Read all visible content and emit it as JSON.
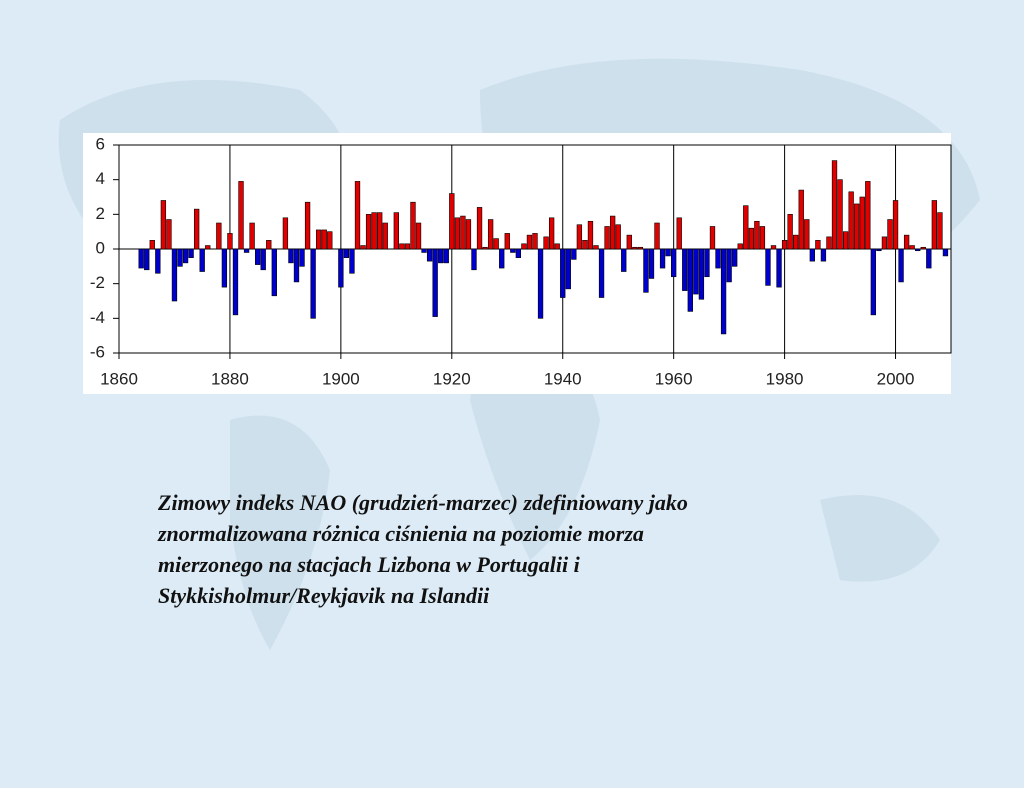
{
  "chart_data": {
    "type": "bar",
    "x": [
      1864,
      1865,
      1866,
      1867,
      1868,
      1869,
      1870,
      1871,
      1872,
      1873,
      1874,
      1875,
      1876,
      1877,
      1878,
      1879,
      1880,
      1881,
      1882,
      1883,
      1884,
      1885,
      1886,
      1887,
      1888,
      1889,
      1890,
      1891,
      1892,
      1893,
      1894,
      1895,
      1896,
      1897,
      1898,
      1899,
      1900,
      1901,
      1902,
      1903,
      1904,
      1905,
      1906,
      1907,
      1908,
      1909,
      1910,
      1911,
      1912,
      1913,
      1914,
      1915,
      1916,
      1917,
      1918,
      1919,
      1920,
      1921,
      1922,
      1923,
      1924,
      1925,
      1926,
      1927,
      1928,
      1929,
      1930,
      1931,
      1932,
      1933,
      1934,
      1935,
      1936,
      1937,
      1938,
      1939,
      1940,
      1941,
      1942,
      1943,
      1944,
      1945,
      1946,
      1947,
      1948,
      1949,
      1950,
      1951,
      1952,
      1953,
      1954,
      1955,
      1956,
      1957,
      1958,
      1959,
      1960,
      1961,
      1962,
      1963,
      1964,
      1965,
      1966,
      1967,
      1968,
      1969,
      1970,
      1971,
      1972,
      1973,
      1974,
      1975,
      1976,
      1977,
      1978,
      1979,
      1980,
      1981,
      1982,
      1983,
      1984,
      1985,
      1986,
      1987,
      1988,
      1989,
      1990,
      1991,
      1992,
      1993,
      1994,
      1995,
      1996,
      1997,
      1998,
      1999,
      2000,
      2001,
      2002,
      2003,
      2004,
      2005,
      2006,
      2007,
      2008,
      2009
    ],
    "values": [
      -1.1,
      -1.2,
      0.5,
      -1.4,
      2.8,
      1.7,
      -3.0,
      -1.0,
      -0.8,
      -0.5,
      2.3,
      -1.3,
      0.2,
      0.0,
      1.5,
      -2.2,
      0.9,
      -3.8,
      3.9,
      -0.2,
      1.5,
      -0.9,
      -1.2,
      0.5,
      -2.7,
      0.0,
      1.8,
      -0.8,
      -1.9,
      -1.0,
      2.7,
      -4.0,
      1.1,
      1.1,
      1.0,
      0.0,
      -2.2,
      -0.5,
      -1.4,
      3.9,
      0.2,
      2.0,
      2.1,
      2.1,
      1.5,
      0.0,
      2.1,
      0.3,
      0.3,
      2.7,
      1.5,
      -0.2,
      -0.7,
      -3.9,
      -0.8,
      -0.8,
      3.2,
      1.8,
      1.9,
      1.7,
      -1.2,
      2.4,
      0.1,
      1.7,
      0.6,
      -1.1,
      0.9,
      -0.2,
      -0.5,
      0.3,
      0.8,
      0.9,
      -4.0,
      0.7,
      1.8,
      0.3,
      -2.8,
      -2.3,
      -0.6,
      1.4,
      0.5,
      1.6,
      0.2,
      -2.8,
      1.3,
      1.9,
      1.4,
      -1.3,
      0.8,
      0.1,
      0.1,
      -2.5,
      -1.7,
      1.5,
      -1.1,
      -0.4,
      -1.6,
      1.8,
      -2.4,
      -3.6,
      -2.6,
      -2.9,
      -1.6,
      1.3,
      -1.1,
      -4.9,
      -1.9,
      -1.0,
      0.3,
      2.5,
      1.2,
      1.6,
      1.3,
      -2.1,
      0.2,
      -2.2,
      0.5,
      2.0,
      0.8,
      3.4,
      1.7,
      -0.7,
      0.5,
      -0.7,
      0.7,
      5.1,
      4.0,
      1.0,
      3.3,
      2.6,
      3.0,
      3.9,
      -3.8,
      -0.1,
      0.7,
      1.7,
      2.8,
      -1.9,
      0.8,
      0.2,
      -0.1,
      0.1,
      -1.1,
      2.8,
      2.1,
      -0.4
    ],
    "positive_color": "#e00000",
    "negative_color": "#0000cc",
    "xlim": [
      1860,
      2010
    ],
    "xticks": [
      1860,
      1880,
      1900,
      1920,
      1940,
      1960,
      1980,
      2000
    ],
    "ylim": [
      -6,
      6
    ],
    "yticks": [
      -6,
      -4,
      -2,
      0,
      2,
      4,
      6
    ],
    "grid": true
  },
  "caption": [
    "Zimowy indeks NAO (grudzień-marzec) zdefiniowany jako",
    "znormalizowana różnica ciśnienia na poziomie morza",
    "mierzonego na stacjach Lizbona w Portugalii i",
    "Stykkisholmur/Reykjavik na Islandii"
  ]
}
